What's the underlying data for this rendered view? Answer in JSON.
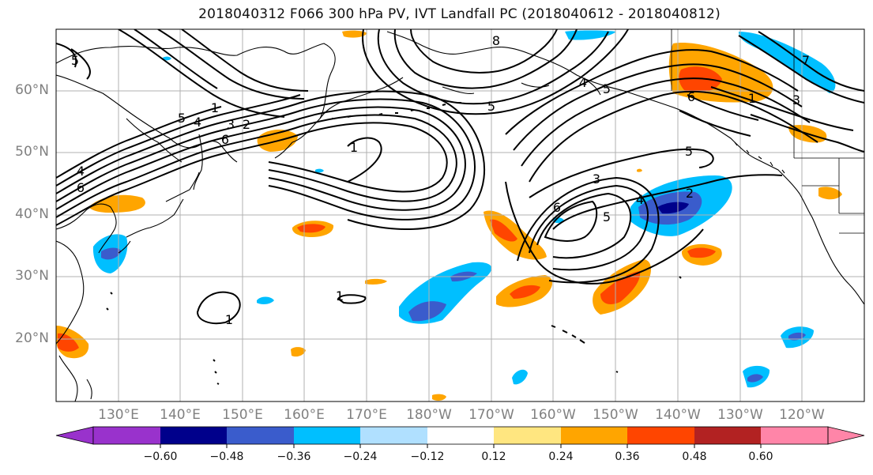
{
  "title": "2018040312 F066 300 hPa PV, IVT Landfall PC (2018040612 - 2018040812)",
  "lat_labels": [
    "60°N",
    "50°N",
    "40°N",
    "30°N",
    "20°N"
  ],
  "lon_labels": [
    "130°E",
    "140°E",
    "150°E",
    "160°E",
    "170°E",
    "180°W",
    "170°W",
    "160°W",
    "150°W",
    "140°W",
    "130°W",
    "120°W"
  ],
  "colorbar": {
    "tick_labels": [
      "−0.60",
      "−0.48",
      "−0.36",
      "−0.24",
      "−0.12",
      "0.12",
      "0.24",
      "0.36",
      "0.48",
      "0.60"
    ],
    "colors": [
      "#9932cc",
      "#00008b",
      "#3a5ccc",
      "#00bfff",
      "#b0e0ff",
      "#ffffff",
      "#ffe680",
      "#ffa500",
      "#ff4500",
      "#b22222",
      "#ff85a8"
    ]
  },
  "contour_labels": [
    "5",
    "4",
    "6",
    "1",
    "5",
    "4",
    "3",
    "2",
    "6",
    "8",
    "5",
    "4",
    "1",
    "6",
    "5",
    "3",
    "5",
    "2",
    "4",
    "6",
    "5",
    "1",
    "3",
    "7",
    "1",
    "1"
  ]
}
